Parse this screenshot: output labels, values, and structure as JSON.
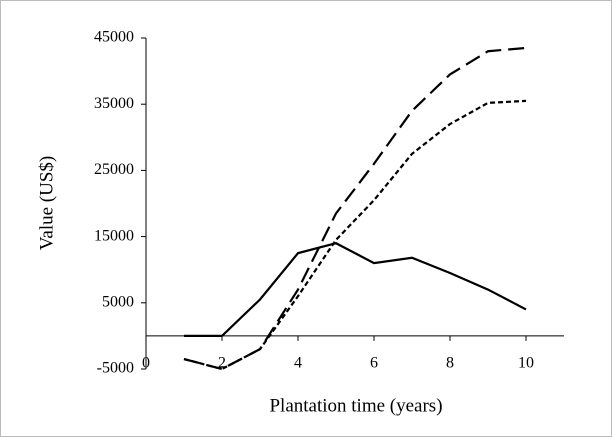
{
  "chart_data": {
    "type": "line",
    "ylabel": "Value (US$)",
    "xlabel": "Plantation time (years)",
    "x": [
      1,
      2,
      3,
      4,
      5,
      6,
      7,
      8,
      9,
      10
    ],
    "series": [
      {
        "color": "#000000",
        "dash": "solid",
        "values": [
          0,
          0,
          5500,
          12500,
          14000,
          11000,
          11800,
          9500,
          7000,
          4000
        ]
      },
      {
        "color": "#000000",
        "dash": "long-dash",
        "values": [
          -3500,
          -5000,
          -2000,
          7000,
          18500,
          26000,
          34000,
          39500,
          43000,
          43500
        ]
      },
      {
        "color": "#000000",
        "dash": "short-dash",
        "values": [
          -3500,
          -5000,
          -2000,
          6000,
          14500,
          20500,
          27500,
          32000,
          35200,
          35500
        ]
      }
    ],
    "xlim": [
      0,
      11
    ],
    "xticks": [
      0,
      2,
      4,
      6,
      8,
      10
    ],
    "ylim": [
      -5000,
      45000
    ],
    "yticks": [
      45000,
      35000,
      25000,
      15000,
      5000,
      -5000
    ],
    "grid": false
  }
}
